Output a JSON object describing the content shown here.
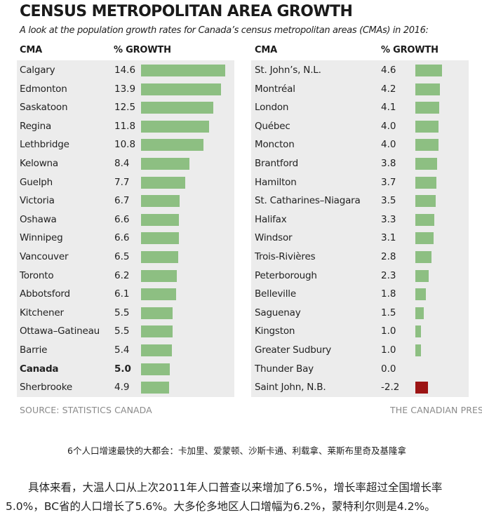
{
  "colors": {
    "bar_positive": "#8dbf82",
    "bar_negative": "#9c1414",
    "panel_bg": "#ececec"
  },
  "chart_data": {
    "type": "bar",
    "title": "CENSUS METROPOLITAN AREA GROWTH",
    "subtitle": "A look at the population growth rates for Canada’s census metropolitan areas (CMAs) in 2016:",
    "column_headers": {
      "name": "CMA",
      "value": "% GROWTH"
    },
    "orientation": "horizontal",
    "xlim": [
      0,
      15
    ],
    "grid": false,
    "highlight": "Canada",
    "rows": [
      {
        "name": "Calgary",
        "value": 14.6
      },
      {
        "name": "Edmonton",
        "value": 13.9
      },
      {
        "name": "Saskatoon",
        "value": 12.5
      },
      {
        "name": "Regina",
        "value": 11.8
      },
      {
        "name": "Lethbridge",
        "value": 10.8
      },
      {
        "name": "Kelowna",
        "value": 8.4
      },
      {
        "name": "Guelph",
        "value": 7.7
      },
      {
        "name": "Victoria",
        "value": 6.7
      },
      {
        "name": "Oshawa",
        "value": 6.6
      },
      {
        "name": "Winnipeg",
        "value": 6.6
      },
      {
        "name": "Vancouver",
        "value": 6.5
      },
      {
        "name": "Toronto",
        "value": 6.2
      },
      {
        "name": "Abbotsford",
        "value": 6.1
      },
      {
        "name": "Kitchener",
        "value": 5.5
      },
      {
        "name": "Ottawa–Gatineau",
        "value": 5.5
      },
      {
        "name": "Barrie",
        "value": 5.4
      },
      {
        "name": "Canada",
        "value": 5.0
      },
      {
        "name": "Sherbrooke",
        "value": 4.9
      },
      {
        "name": "St. John’s, N.L.",
        "value": 4.6
      },
      {
        "name": "Montréal",
        "value": 4.2
      },
      {
        "name": "London",
        "value": 4.1
      },
      {
        "name": "Québec",
        "value": 4.0
      },
      {
        "name": "Moncton",
        "value": 4.0
      },
      {
        "name": "Brantford",
        "value": 3.8
      },
      {
        "name": "Hamilton",
        "value": 3.7
      },
      {
        "name": "St. Catharines–Niagara",
        "value": 3.5
      },
      {
        "name": "Halifax",
        "value": 3.3
      },
      {
        "name": "Windsor",
        "value": 3.1
      },
      {
        "name": "Trois-Rivières",
        "value": 2.8
      },
      {
        "name": "Peterborough",
        "value": 2.3
      },
      {
        "name": "Belleville",
        "value": 1.8
      },
      {
        "name": "Saguenay",
        "value": 1.5
      },
      {
        "name": "Kingston",
        "value": 1.0
      },
      {
        "name": "Greater Sudbury",
        "value": 1.0
      },
      {
        "name": "Thunder Bay",
        "value": 0.0
      },
      {
        "name": "Saint John, N.B.",
        "value": -2.2
      }
    ]
  },
  "source": "SOURCE: STATISTICS CANADA",
  "credit": "THE CANADIAN PRESS",
  "caption": "6个人口增速最快的大都会：卡加里、爱蒙顿、沙斯卡通、利载拿、莱斯布里奇及基隆拿",
  "body_text": "具体来看，大温人口从上次2011年人口普查以来增加了6.5%，增长率超过全国增长率5.0%，BC省的人口增长了5.6%。大多伦多地区人口增幅为6.2%，蒙特利尔则是4.2%。"
}
